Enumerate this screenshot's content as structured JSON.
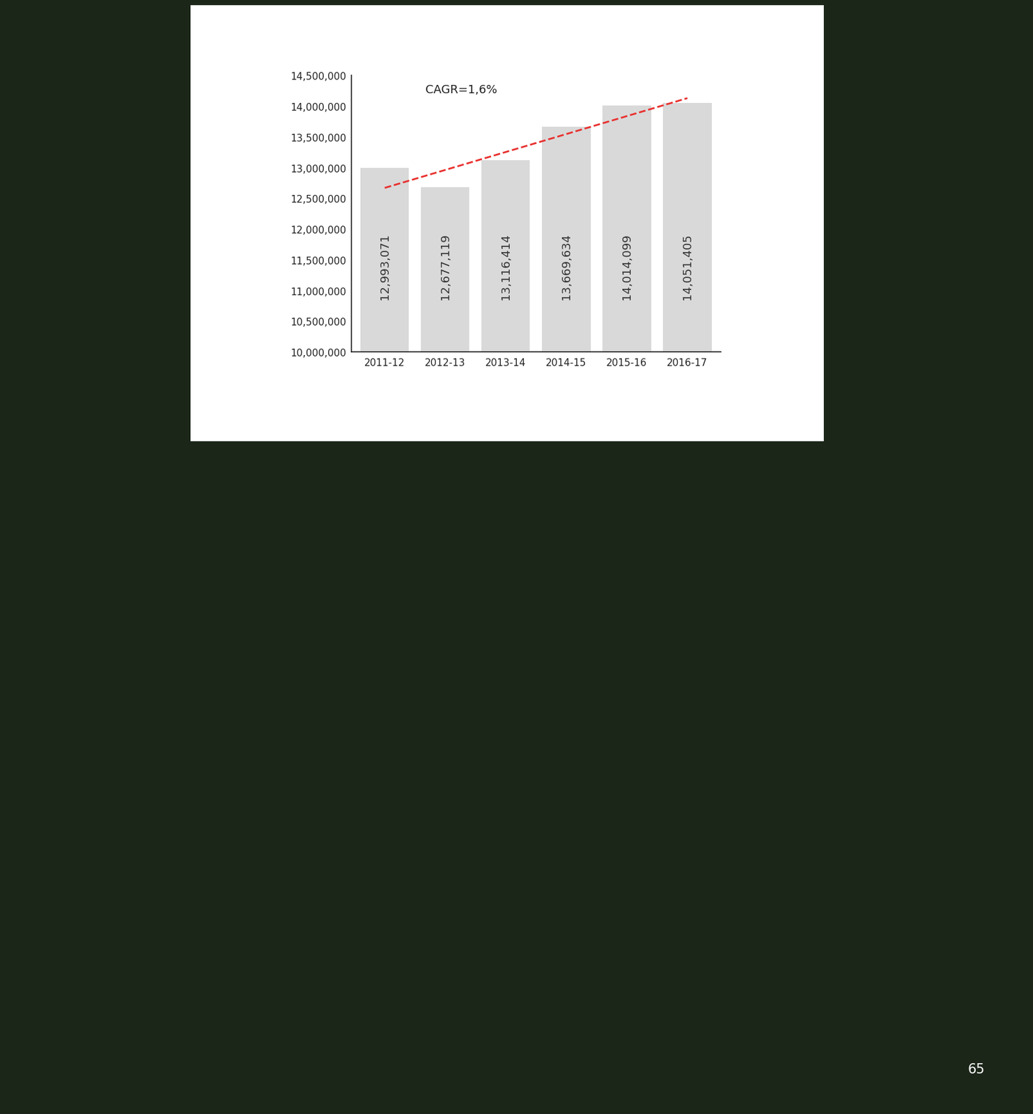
{
  "chart_data": {
    "type": "bar",
    "categories": [
      "2011-12",
      "2012-13",
      "2013-14",
      "2014-15",
      "2015-16",
      "2016-17"
    ],
    "values": [
      12993071,
      12677119,
      13116414,
      13669634,
      14014099,
      14051405
    ],
    "value_labels": [
      "12,993,071",
      "12,677,119",
      "13,116,414",
      "13,669,634",
      "14,014,099",
      "14,051,405"
    ],
    "data_labels": true,
    "color": "#d9d9d9",
    "ylim": [
      10000000,
      14500000
    ],
    "yticks": [
      {
        "value": 10000000,
        "label": "10,000,000"
      },
      {
        "value": 10500000,
        "label": "10,500,000"
      },
      {
        "value": 11000000,
        "label": "11,000,000"
      },
      {
        "value": 11500000,
        "label": "11,500,000"
      },
      {
        "value": 12000000,
        "label": "12,000,000"
      },
      {
        "value": 12500000,
        "label": "12,500,000"
      },
      {
        "value": 13000000,
        "label": "13,000,000"
      },
      {
        "value": 13500000,
        "label": "13,500,000"
      },
      {
        "value": 14000000,
        "label": "14,000,000"
      },
      {
        "value": 14500000,
        "label": "14,500,000"
      }
    ],
    "grid": false,
    "annotation": "CAGR=1,6%",
    "trend": {
      "values": [
        12670000,
        14130000
      ],
      "color": "#e8312f",
      "line_style": "dashed"
    }
  },
  "page_number": "65"
}
